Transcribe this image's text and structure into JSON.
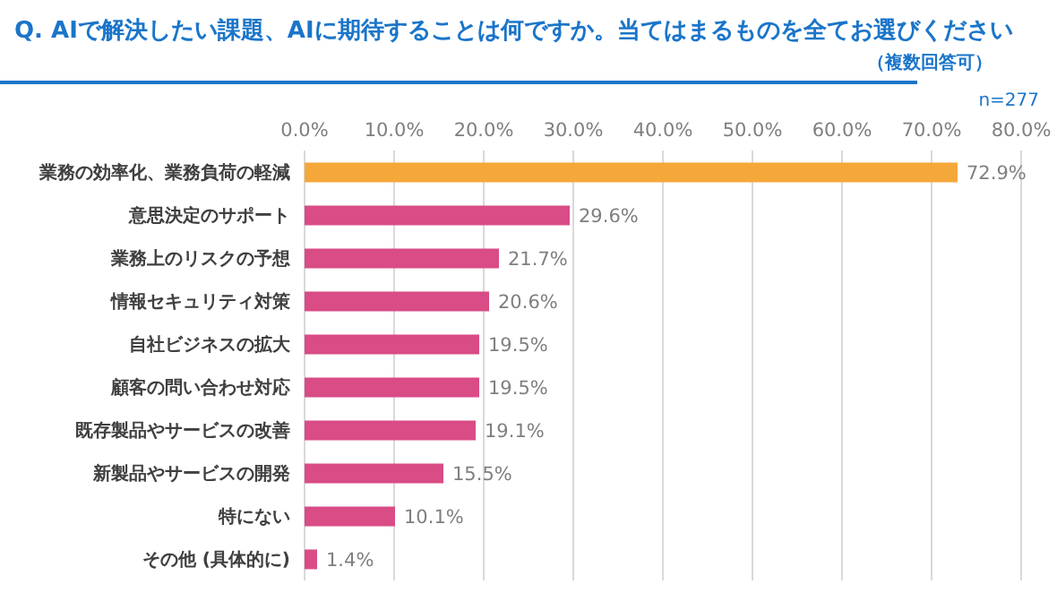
{
  "chart_data": {
    "type": "bar",
    "orientation": "horizontal",
    "title": "Q. AIで解決したい課題、AIに期待することは何ですか。当てはまるものを全てお選びください",
    "subtitle": "（複数回答可）",
    "annotations": [
      "n=277"
    ],
    "categories": [
      "業務の効率化、業務負荷の軽減",
      "意思決定のサポート",
      "業務上のリスクの予想",
      "情報セキュリティ対策",
      "自社ビジネスの拡大",
      "顧客の問い合わせ対応",
      "既存製品やサービスの改善",
      "新製品やサービスの開発",
      "特にない",
      "その他 (具体的に)"
    ],
    "values": [
      72.9,
      29.6,
      21.7,
      20.6,
      19.5,
      19.5,
      19.1,
      15.5,
      10.1,
      1.4
    ],
    "value_labels": [
      "72.9%",
      "29.6%",
      "21.7%",
      "20.6%",
      "19.5%",
      "19.5%",
      "19.1%",
      "15.5%",
      "10.1%",
      "1.4%"
    ],
    "colors": [
      "#f5a83a",
      "#d94c86",
      "#d94c86",
      "#d94c86",
      "#d94c86",
      "#d94c86",
      "#d94c86",
      "#d94c86",
      "#d94c86",
      "#d94c86"
    ],
    "xlim": [
      0,
      80
    ],
    "xticks": [
      {
        "value": 0,
        "label": "0.0%"
      },
      {
        "value": 10,
        "label": "10.0%"
      },
      {
        "value": 20,
        "label": "20.0%"
      },
      {
        "value": 30,
        "label": "30.0%"
      },
      {
        "value": 40,
        "label": "40.0%"
      },
      {
        "value": 50,
        "label": "50.0%"
      },
      {
        "value": 60,
        "label": "60.0%"
      },
      {
        "value": 70,
        "label": "70.0%"
      },
      {
        "value": 80,
        "label": "80.0%"
      }
    ],
    "grid": "x"
  }
}
